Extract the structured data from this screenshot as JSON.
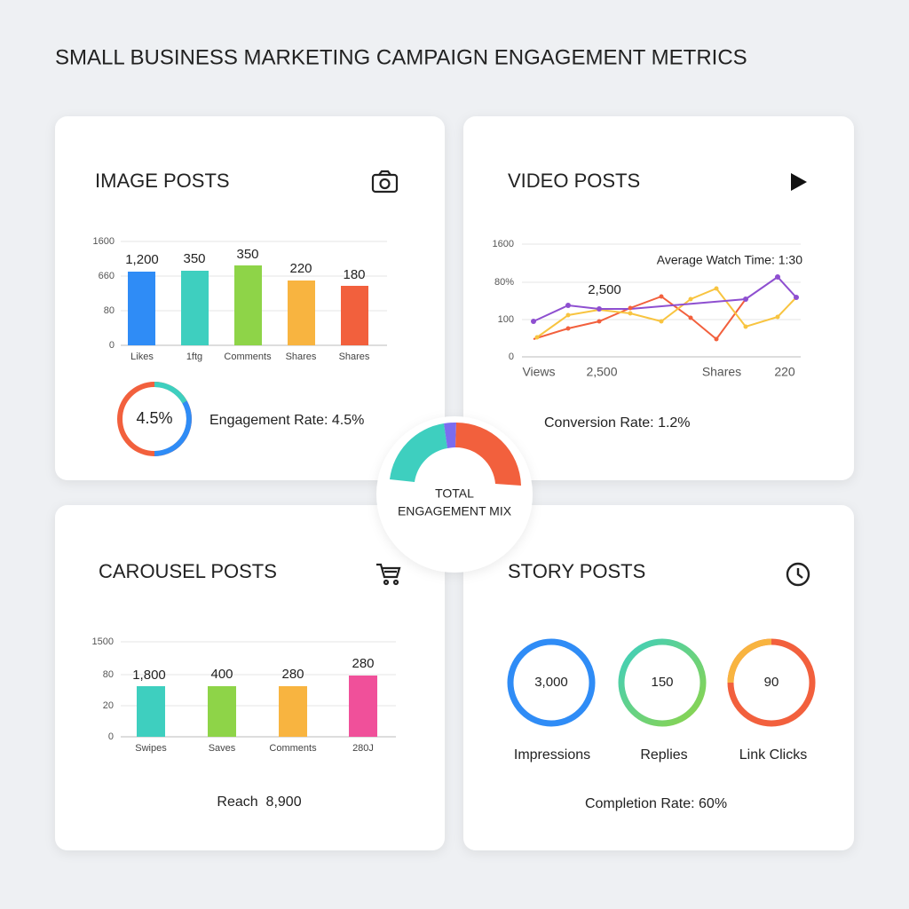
{
  "header": {
    "title": "SMALL BUSINESS MARKETING CAMPAIGN ENGAGEMENT METRICS"
  },
  "image_posts": {
    "title": "IMAGE POSTS",
    "ticks": [
      "1600",
      "660",
      "80",
      "0"
    ],
    "bar_labels": [
      "1,200",
      "350",
      "350",
      "220",
      "180"
    ],
    "categories": [
      "Likes",
      "1ftg",
      "Comments",
      "Shares",
      "Shares"
    ],
    "donut_label": "4.5%",
    "caption": "Engagement Rate: 4.5%"
  },
  "video_posts": {
    "title": "VIDEO POSTS",
    "ticks": [
      "1600",
      "80%",
      "100",
      "0"
    ],
    "annotation": "Average Watch Time: 1:30",
    "point_label": "2,500",
    "x_labels": [
      "Views",
      "2,500",
      "Shares",
      "220"
    ],
    "caption": "Conversion Rate: 1.2%"
  },
  "center": {
    "lines": [
      "TOTAL",
      "ENGAGEMENT MIX"
    ]
  },
  "carousel_posts": {
    "title": "CAROUSEL POSTS",
    "ticks": [
      "1500",
      "80",
      "20",
      "0"
    ],
    "bar_labels": [
      "1,800",
      "400",
      "280",
      "280"
    ],
    "categories": [
      "Swipes",
      "Saves",
      "Comments",
      "280J"
    ],
    "caption": "Reach  8,900"
  },
  "story_posts": {
    "title": "STORY POSTS",
    "rings": [
      {
        "value": "3,000",
        "label": "Impressions"
      },
      {
        "value": "150",
        "label": "Replies"
      },
      {
        "value": "90",
        "label": "Link Clicks"
      }
    ],
    "caption": "Completion Rate: 60%"
  }
}
